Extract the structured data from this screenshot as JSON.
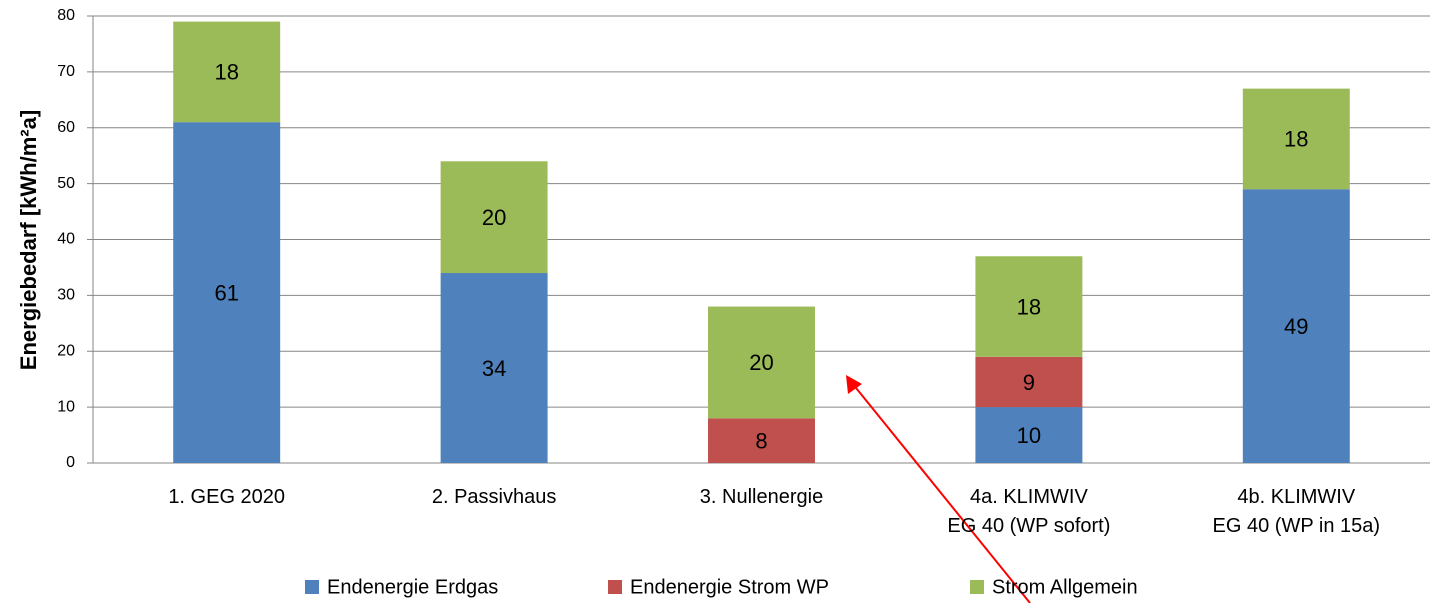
{
  "chart_data": {
    "type": "stacked_bar",
    "y_label": "Energiebedarf [kWh/m²a]",
    "categories": [
      "1. GEG 2020",
      "2. Passivhaus",
      "3. Nullenergie",
      "4a. KLIMWIV\nEG 40 (WP sofort)",
      "4b. KLIMWIV\nEG 40 (WP in 15a)"
    ],
    "series": [
      {
        "name": "Endenergie Erdgas",
        "color": "#4f81bd",
        "values": [
          61,
          34,
          null,
          10,
          49
        ]
      },
      {
        "name": "Endenergie Strom WP",
        "color": "#c0504d",
        "values": [
          null,
          null,
          8,
          9,
          null
        ]
      },
      {
        "name": "Strom Allgemein",
        "color": "#9bbb59",
        "values": [
          18,
          20,
          20,
          18,
          18
        ]
      }
    ],
    "ylim": [
      0,
      80
    ],
    "yticks": [
      0,
      10,
      20,
      30,
      40,
      50,
      60,
      70,
      80
    ],
    "grid": true,
    "legend": "bottom"
  }
}
